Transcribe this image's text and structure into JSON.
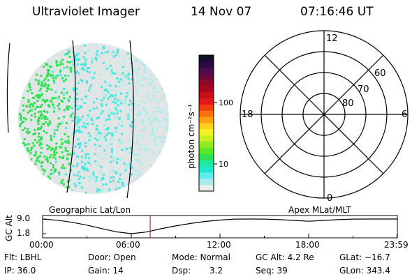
{
  "header": {
    "instrument": "Ultraviolet Imager",
    "date": "14 Nov 07",
    "time": "07:16:46 UT"
  },
  "colorbar": {
    "label": "photon cm⁻²s⁻¹",
    "ticks": [
      "100",
      "10"
    ],
    "colors": [
      "#101028",
      "#2a0840",
      "#4a0c4c",
      "#6a0a3c",
      "#8a0a28",
      "#a8081a",
      "#c8101a",
      "#e01818",
      "#f03c10",
      "#ff7010",
      "#ffa010",
      "#ffd020",
      "#f4f020",
      "#c8f020",
      "#90ec20",
      "#58e828",
      "#30e050",
      "#20e8a0",
      "#20e8d0",
      "#60ecec",
      "#a8ecec",
      "#e4ecec"
    ]
  },
  "left_panel": {
    "caption": "Geographic Lat/Lon",
    "colors": {
      "bright": "#30e050",
      "cyan": "#40e8e0",
      "pale": "#a8ecec",
      "faint": "#e0e6e6"
    }
  },
  "polar": {
    "caption": "Apex MLat/MLT",
    "mlt_labels": {
      "top": "12",
      "bottom": "0",
      "left": "18",
      "right": "6"
    },
    "lat_labels": [
      "60",
      "70",
      "80"
    ]
  },
  "orbit": {
    "ylabel": "GC Alt",
    "yticks": [
      "9.0",
      "1.8"
    ],
    "xticks": [
      "00:00",
      "06:00",
      "12:00",
      "18:00",
      "23:59"
    ],
    "current_color": "#b03040"
  },
  "footer": {
    "row1": {
      "filter": "Flt: LBHL",
      "door": "Door: Open",
      "mode": "Mode: Normal",
      "gc_alt": "GC Alt: 4.2 Re",
      "glat": "GLat: −16.7"
    },
    "row2": {
      "ip": "IP: 36.0",
      "gain": "Gain: 14",
      "dsp_label": "Dsp:",
      "dsp_value": "3.2",
      "seq": "Seq: 39",
      "glon": "GLon: 343.4"
    }
  }
}
